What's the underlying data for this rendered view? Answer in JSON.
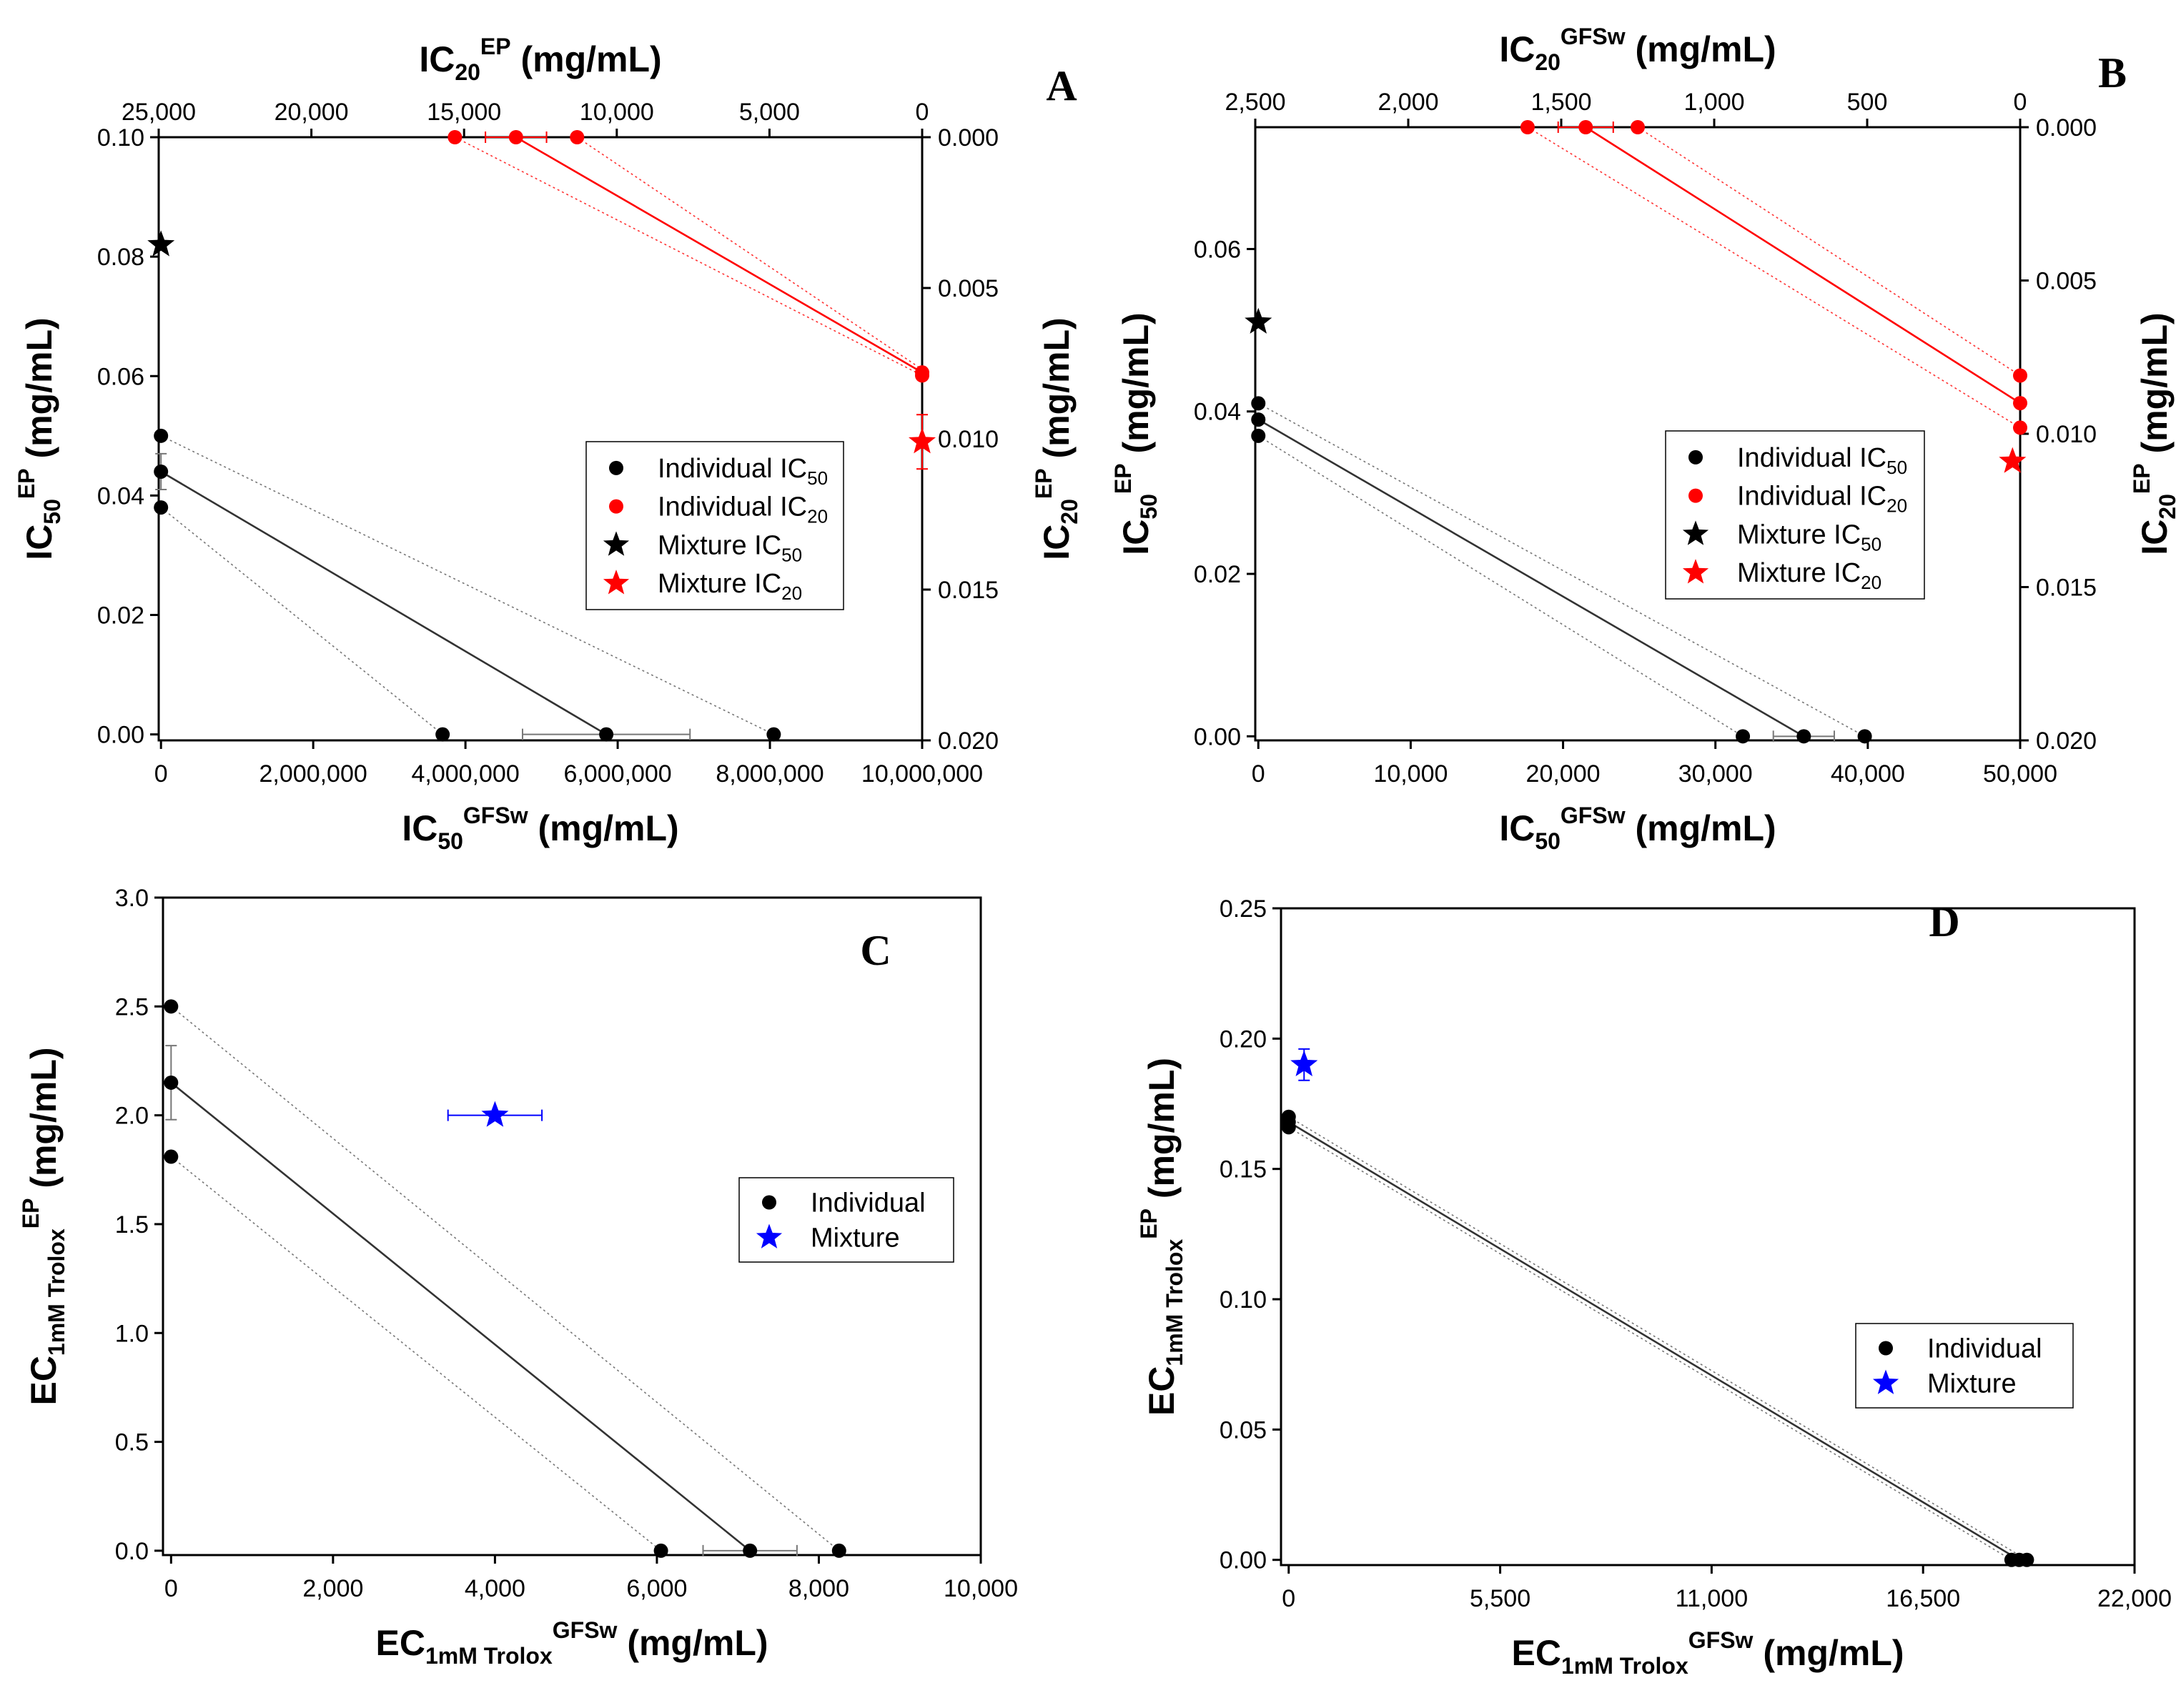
{
  "panels": [
    {
      "id": "A",
      "label": "A",
      "xlabel": {
        "base": "IC",
        "sub": "50",
        "sup": "GFSw",
        "unit": " (mg/mL)"
      },
      "ylabel": {
        "base": "IC",
        "sub": "50",
        "sup": "EP",
        "unit": " (mg/mL)"
      },
      "x2label": {
        "base": "IC",
        "sub": "20",
        "sup": "EP",
        "unit": " (mg/mL)"
      },
      "y2label": {
        "base": "IC",
        "sub": "20",
        "sup": "EP",
        "unit": " (mg/mL)"
      },
      "xticks": [
        "0",
        "2,000,000",
        "4,000,000",
        "6,000,000",
        "8,000,000",
        "10,000,000"
      ],
      "yticks": [
        "0.00",
        "0.02",
        "0.04",
        "0.06",
        "0.08",
        "0.10"
      ],
      "x2ticks": [
        "25,000",
        "20,000",
        "15,000",
        "10,000",
        "5,000",
        "0"
      ],
      "y2ticks": [
        "0.000",
        "0.005",
        "0.010",
        "0.015",
        "0.020"
      ],
      "legend": [
        {
          "marker": "circle",
          "color": "#000000",
          "text": "Individual IC",
          "sub": "50"
        },
        {
          "marker": "circle",
          "color": "#ff0000",
          "text": "Individual IC",
          "sub": "20"
        },
        {
          "marker": "star",
          "color": "#000000",
          "text": "Mixture IC",
          "sub": "50"
        },
        {
          "marker": "star",
          "color": "#ff0000",
          "text": "Mixture IC",
          "sub": "20"
        }
      ]
    },
    {
      "id": "B",
      "label": "B",
      "xlabel": {
        "base": "IC",
        "sub": "50",
        "sup": "GFSw",
        "unit": " (mg/mL)"
      },
      "ylabel": {
        "base": "IC",
        "sub": "50",
        "sup": "EP",
        "unit": " (mg/mL)"
      },
      "x2label": {
        "base": "IC",
        "sub": "20",
        "sup": "GFSw",
        "unit": " (mg/mL)"
      },
      "y2label": {
        "base": "IC",
        "sub": "20",
        "sup": "EP",
        "unit": " (mg/mL)"
      },
      "xticks": [
        "0",
        "10,000",
        "20,000",
        "30,000",
        "40,000",
        "50,000"
      ],
      "yticks": [
        "0.00",
        "0.02",
        "0.04",
        "0.06"
      ],
      "x2ticks": [
        "2,500",
        "2,000",
        "1,500",
        "1,000",
        "500",
        "0"
      ],
      "y2ticks": [
        "0.000",
        "0.005",
        "0.010",
        "0.015",
        "0.020"
      ],
      "legend": [
        {
          "marker": "circle",
          "color": "#000000",
          "text": "Individual IC",
          "sub": "50"
        },
        {
          "marker": "circle",
          "color": "#ff0000",
          "text": "Individual IC",
          "sub": "20"
        },
        {
          "marker": "star",
          "color": "#000000",
          "text": "Mixture IC",
          "sub": "50"
        },
        {
          "marker": "star",
          "color": "#ff0000",
          "text": "Mixture IC",
          "sub": "20"
        }
      ]
    },
    {
      "id": "C",
      "label": "C",
      "xlabel": {
        "base": "EC",
        "sub": "1mM Trolox",
        "sup": "GFSw",
        "unit": " (mg/mL)"
      },
      "ylabel": {
        "base": "EC",
        "sub": "1mM Trolox",
        "sup": "EP",
        "unit": " (mg/mL)"
      },
      "xticks": [
        "0",
        "2,000",
        "4,000",
        "6,000",
        "8,000",
        "10,000"
      ],
      "yticks": [
        "0.0",
        "0.5",
        "1.0",
        "1.5",
        "2.0",
        "2.5",
        "3.0"
      ],
      "legend": [
        {
          "marker": "circle",
          "color": "#000000",
          "text": "Individual",
          "sub": ""
        },
        {
          "marker": "star",
          "color": "#0000ff",
          "text": "Mixture",
          "sub": ""
        }
      ]
    },
    {
      "id": "D",
      "label": "D",
      "xlabel": {
        "base": "EC",
        "sub": "1mM Trolox",
        "sup": "GFSw",
        "unit": " (mg/mL)"
      },
      "ylabel": {
        "base": "EC",
        "sub": "1mM Trolox",
        "sup": "EP",
        "unit": " (mg/mL)"
      },
      "xticks": [
        "0",
        "5,500",
        "11,000",
        "16,500",
        "22,000"
      ],
      "yticks": [
        "0.00",
        "0.05",
        "0.10",
        "0.15",
        "0.20",
        "0.25"
      ],
      "legend": [
        {
          "marker": "circle",
          "color": "#000000",
          "text": "Individual",
          "sub": ""
        },
        {
          "marker": "star",
          "color": "#0000ff",
          "text": "Mixture",
          "sub": ""
        }
      ]
    }
  ],
  "chart_data": [
    {
      "type": "scatter",
      "panel": "A",
      "xlim": [
        -30000,
        10000000
      ],
      "ylim": [
        -0.001,
        0.1
      ],
      "x2lim": [
        25000,
        0
      ],
      "y2lim": [
        0,
        0.02
      ],
      "series": [
        {
          "name": "Individual IC50",
          "color": "#000000",
          "axes": "primary",
          "points": [
            [
              0,
              0.05
            ],
            [
              0,
              0.044
            ],
            [
              0,
              0.038
            ],
            [
              3700000,
              0
            ],
            [
              5850000,
              0
            ],
            [
              8050000,
              0
            ]
          ],
          "errors": [
            {
              "x": 0,
              "y": 0.044,
              "yerr": 0.003
            },
            {
              "x": 5850000,
              "y": 0,
              "xerr": 1100000
            }
          ],
          "lines": [
            [
              [
                0,
                0.044
              ],
              [
                5850000,
                0
              ]
            ]
          ],
          "dotted": [
            [
              [
                0,
                0.05
              ],
              [
                8050000,
                0
              ]
            ],
            [
              [
                0,
                0.038
              ],
              [
                3700000,
                0
              ]
            ]
          ]
        },
        {
          "name": "Individual IC20",
          "color": "#ff0000",
          "axes": "secondary",
          "points": [
            [
              15300,
              0
            ],
            [
              13300,
              0
            ],
            [
              11300,
              0
            ],
            [
              0,
              0.0078
            ],
            [
              0,
              0.0079
            ]
          ],
          "errors": [
            {
              "x": 13300,
              "y": 0,
              "xerr": 1000
            }
          ],
          "lines": [
            [
              [
                13300,
                0
              ],
              [
                0,
                0.0078
              ]
            ]
          ],
          "dotted": [
            [
              [
                15300,
                0
              ],
              [
                0,
                0.0079
              ]
            ],
            [
              [
                11300,
                0
              ],
              [
                0,
                0.0077
              ]
            ]
          ]
        },
        {
          "name": "Mixture IC50",
          "color": "#000000",
          "marker": "star",
          "axes": "primary",
          "points": [
            [
              0,
              0.082
            ]
          ]
        },
        {
          "name": "Mixture IC20",
          "color": "#ff0000",
          "marker": "star",
          "axes": "secondary",
          "points": [
            [
              0,
              0.0101
            ]
          ],
          "errors": [
            {
              "x": 0,
              "y": 0.0101,
              "yerr": 0.0009
            }
          ]
        }
      ]
    },
    {
      "type": "scatter",
      "panel": "B",
      "xlim": [
        -200,
        50000
      ],
      "ylim": [
        -0.0005,
        0.075
      ],
      "x2lim": [
        2500,
        0
      ],
      "y2lim": [
        0,
        0.02
      ],
      "series": [
        {
          "name": "Individual IC50",
          "color": "#000000",
          "axes": "primary",
          "points": [
            [
              0,
              0.041
            ],
            [
              0,
              0.039
            ],
            [
              0,
              0.037
            ],
            [
              31800,
              0
            ],
            [
              35800,
              0
            ],
            [
              39800,
              0
            ]
          ],
          "errors": [
            {
              "x": 35800,
              "y": 0,
              "xerr": 2000
            }
          ],
          "lines": [
            [
              [
                0,
                0.039
              ],
              [
                35800,
                0
              ]
            ]
          ],
          "dotted": [
            [
              [
                0,
                0.041
              ],
              [
                39800,
                0
              ]
            ],
            [
              [
                0,
                0.037
              ],
              [
                31800,
                0
              ]
            ]
          ]
        },
        {
          "name": "Individual IC20",
          "color": "#ff0000",
          "axes": "secondary",
          "points": [
            [
              1610,
              0
            ],
            [
              1420,
              0
            ],
            [
              1250,
              0
            ],
            [
              0,
              0.0081
            ],
            [
              0,
              0.009
            ],
            [
              0,
              0.0098
            ]
          ],
          "errors": [
            {
              "x": 1420,
              "y": 0,
              "xerr": 90
            }
          ],
          "lines": [
            [
              [
                1420,
                0
              ],
              [
                0,
                0.009
              ]
            ]
          ],
          "dotted": [
            [
              [
                1610,
                0
              ],
              [
                0,
                0.0098
              ]
            ],
            [
              [
                1250,
                0
              ],
              [
                0,
                0.0081
              ]
            ]
          ]
        },
        {
          "name": "Mixture IC50",
          "color": "#000000",
          "marker": "star",
          "axes": "primary",
          "points": [
            [
              0,
              0.051
            ]
          ]
        },
        {
          "name": "Mixture IC20",
          "color": "#ff0000",
          "marker": "star",
          "axes": "secondary",
          "points": [
            [
              25,
              0.0109
            ]
          ]
        }
      ]
    },
    {
      "type": "scatter",
      "panel": "C",
      "xlim": [
        -100,
        10000
      ],
      "ylim": [
        -0.02,
        3.0
      ],
      "series": [
        {
          "name": "Individual",
          "color": "#000000",
          "points": [
            [
              0,
              2.5
            ],
            [
              0,
              2.15
            ],
            [
              0,
              1.81
            ],
            [
              6050,
              0
            ],
            [
              7150,
              0
            ],
            [
              8250,
              0
            ]
          ],
          "errors": [
            {
              "x": 0,
              "y": 2.15,
              "yerr": 0.17
            },
            {
              "x": 7150,
              "y": 0,
              "xerr": 580
            }
          ],
          "lines": [
            [
              [
                0,
                2.15
              ],
              [
                7150,
                0
              ]
            ]
          ],
          "dotted": [
            [
              [
                0,
                2.5
              ],
              [
                8250,
                0
              ]
            ],
            [
              [
                0,
                1.81
              ],
              [
                6050,
                0
              ]
            ]
          ]
        },
        {
          "name": "Mixture",
          "color": "#0000ff",
          "marker": "star",
          "points": [
            [
              4000,
              2.0
            ]
          ],
          "errors": [
            {
              "x": 4000,
              "y": 2.0,
              "xerr": 580
            }
          ]
        }
      ]
    },
    {
      "type": "scatter",
      "panel": "D",
      "xlim": [
        -200,
        22000
      ],
      "ylim": [
        -0.002,
        0.25
      ],
      "series": [
        {
          "name": "Individual",
          "color": "#000000",
          "points": [
            [
              0,
              0.17
            ],
            [
              0,
              0.168
            ],
            [
              0,
              0.166
            ],
            [
              18800,
              0
            ],
            [
              19000,
              0
            ],
            [
              19200,
              0
            ]
          ],
          "lines": [
            [
              [
                0,
                0.168
              ],
              [
                19000,
                0
              ]
            ]
          ],
          "dotted": [
            [
              [
                0,
                0.17
              ],
              [
                19200,
                0
              ]
            ],
            [
              [
                0,
                0.166
              ],
              [
                18800,
                0
              ]
            ]
          ]
        },
        {
          "name": "Mixture",
          "color": "#0000ff",
          "marker": "star",
          "points": [
            [
              400,
              0.19
            ]
          ],
          "errors": [
            {
              "x": 400,
              "y": 0.19,
              "yerr": 0.006
            }
          ]
        }
      ]
    }
  ]
}
